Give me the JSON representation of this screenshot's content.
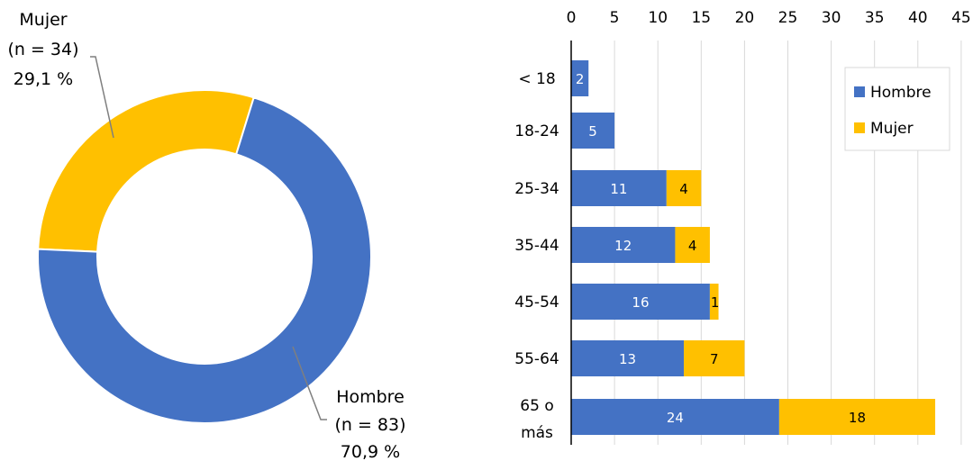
{
  "chart_data": [
    {
      "type": "pie",
      "style": "donut",
      "slices": [
        {
          "name": "Mujer",
          "count_label": "(n = 34)",
          "value": 34,
          "percent_label": "29,1 %",
          "color": "#FFC000"
        },
        {
          "name": "Hombre",
          "count_label": "(n = 83)",
          "value": 83,
          "percent_label": "70,9 %",
          "color": "#4472C4"
        }
      ]
    },
    {
      "type": "bar",
      "orientation": "horizontal",
      "stacked": true,
      "categories": [
        "< 18",
        "18-24",
        "25-34",
        "35-44",
        "45-54",
        "55-64",
        "65 o\nmás"
      ],
      "series": [
        {
          "name": "Hombre",
          "color": "#4472C4",
          "values": [
            2,
            5,
            11,
            12,
            16,
            13,
            24
          ]
        },
        {
          "name": "Mujer",
          "color": "#FFC000",
          "values": [
            0,
            0,
            4,
            4,
            1,
            7,
            18
          ]
        }
      ],
      "xlim": [
        0,
        45
      ],
      "xticks": [
        0,
        5,
        10,
        15,
        20,
        25,
        30,
        35,
        40,
        45
      ],
      "x_axis_position": "top",
      "grid": true,
      "legend_position": "top-right"
    }
  ]
}
